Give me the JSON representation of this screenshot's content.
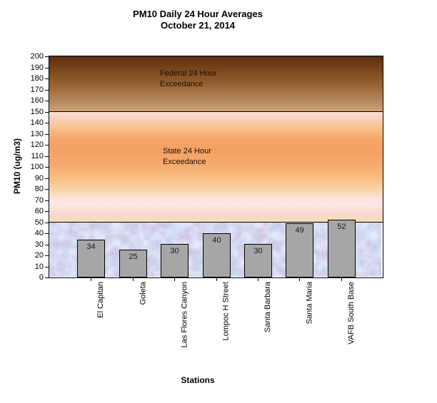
{
  "title": {
    "line1": "PM10 Daily 24 Hour Averages",
    "line2": "October 21, 2014"
  },
  "chart_data": {
    "type": "bar",
    "title": "PM10 Daily 24 Hour Averages",
    "subtitle": "October 21, 2014",
    "categories": [
      "El Capitan",
      "Goleta",
      "Las Flores Canyon",
      "Lompoc H Street",
      "Santa Barbara",
      "Santa Maria",
      "VAFB South Base"
    ],
    "values": [
      34,
      25,
      30,
      40,
      30,
      49,
      52
    ],
    "xlabel": "Stations",
    "ylabel": "PM10 (ug/m3)",
    "ylim": [
      0,
      200
    ],
    "ytick_step": 10,
    "grid": false,
    "legend": false,
    "bar_labels_position": "inside-end",
    "zones": [
      {
        "name": "federal-exceedance-zone",
        "from": 150,
        "to": 200,
        "style": "brown-gradient"
      },
      {
        "name": "state-exceedance-zone",
        "from": 50,
        "to": 150,
        "style": "orange-pink-gradient"
      },
      {
        "name": "below-standards-zone",
        "from": 0,
        "to": 50,
        "style": "blue-mottled-texture"
      }
    ],
    "annotations": [
      {
        "zone": "federal",
        "line1": "Federal 24 Hour",
        "line2": "Exceedance"
      },
      {
        "zone": "state",
        "line1": "State 24 Hour",
        "line2": "Exceedance"
      }
    ]
  },
  "colors": {
    "bar_fill": "#a6a6a6",
    "bar_border": "#000000",
    "axis": "#000000",
    "text": "#000000",
    "federal_gradient": [
      "#5f2e0c 0%",
      "#96602f 50%",
      "#cba47d 100%"
    ],
    "state_gradient": [
      "#fbdcd8 0%",
      "#f8c492 13%",
      "#f5a467 25%",
      "#f5a164 35%",
      "#f6ab6e 48%",
      "#f7bf82 60%",
      "#f9d3a6 70%",
      "#fbe4da 78%",
      "#fbe7e6 84%",
      "#f9d9cb 92%",
      "#f8dcb4 100%"
    ],
    "blue_zone_base": "#c5d6ee",
    "blue_zone_pink": "#d9b8d8",
    "blue_zone_light": "#ffffff"
  }
}
